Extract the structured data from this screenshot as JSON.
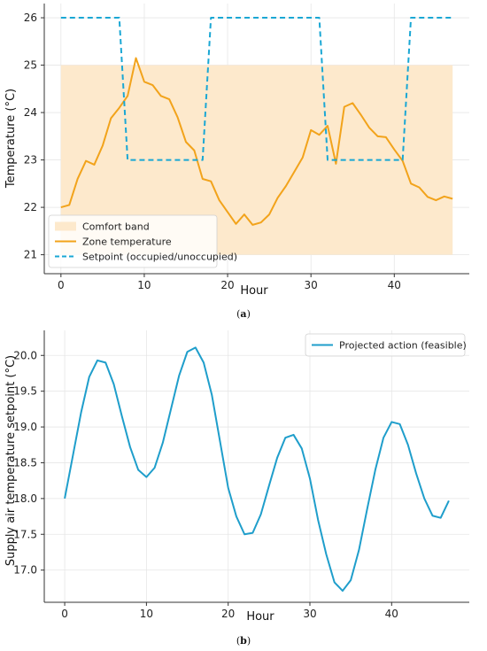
{
  "chart_data": [
    {
      "type": "line",
      "panel_label": "a",
      "xlabel": "Hour",
      "ylabel": "Temperature (°C)",
      "xlim": [
        -2,
        49
      ],
      "ylim": [
        20.6,
        26.3
      ],
      "xticks": [
        0,
        10,
        20,
        30,
        40
      ],
      "yticks": [
        21,
        22,
        23,
        24,
        25,
        26
      ],
      "grid": true,
      "legend_position": "lower-left",
      "band": {
        "name": "Comfort band",
        "y0": 21,
        "y1": 25,
        "x0": 0,
        "x1": 47,
        "color": "#fde9cc"
      },
      "series": [
        {
          "name": "Zone temperature",
          "style": "solid",
          "color": "#f2a31b",
          "x": [
            0,
            1,
            2,
            3,
            4,
            5,
            6,
            7,
            8,
            9,
            10,
            11,
            12,
            13,
            14,
            15,
            16,
            17,
            18,
            19,
            20,
            21,
            22,
            23,
            24,
            25,
            26,
            27,
            28,
            29,
            30,
            31,
            32,
            33,
            34,
            35,
            36,
            37,
            38,
            39,
            40,
            41,
            42,
            43,
            44,
            45,
            46,
            47
          ],
          "y": [
            22.0,
            22.05,
            22.6,
            22.98,
            22.9,
            23.3,
            23.88,
            24.1,
            24.35,
            25.15,
            24.65,
            24.58,
            24.35,
            24.28,
            23.9,
            23.38,
            23.2,
            22.6,
            22.55,
            22.15,
            21.9,
            21.65,
            21.85,
            21.63,
            21.68,
            21.85,
            22.2,
            22.45,
            22.75,
            23.05,
            23.63,
            23.53,
            23.72,
            22.92,
            24.12,
            24.2,
            23.95,
            23.68,
            23.5,
            23.48,
            23.22,
            22.98,
            22.5,
            22.42,
            22.22,
            22.15,
            22.23,
            22.18
          ]
        },
        {
          "name": "Setpoint (occupied/unoccupied)",
          "style": "dashed",
          "color": "#1aa7d4",
          "x": [
            0,
            7,
            8,
            17,
            18,
            31,
            32,
            41,
            42,
            47
          ],
          "y": [
            26,
            26,
            23,
            23,
            26,
            26,
            23,
            23,
            26,
            26
          ]
        }
      ]
    },
    {
      "type": "line",
      "panel_label": "b",
      "xlabel": "Hour",
      "ylabel": "Supply air temperature setpoint (°C)",
      "xlim": [
        -2.5,
        49.5
      ],
      "ylim": [
        16.55,
        20.35
      ],
      "xticks": [
        0,
        10,
        20,
        30,
        40
      ],
      "yticks": [
        17.0,
        17.5,
        18.0,
        18.5,
        19.0,
        19.5,
        20.0
      ],
      "grid": true,
      "legend_position": "top-right",
      "series": [
        {
          "name": "Projected action (feasible)",
          "style": "solid",
          "color": "#1f9ecb",
          "x": [
            0,
            1,
            2,
            3,
            4,
            5,
            6,
            7,
            8,
            9,
            10,
            11,
            12,
            13,
            14,
            15,
            16,
            17,
            18,
            19,
            20,
            21,
            22,
            23,
            24,
            25,
            26,
            27,
            28,
            29,
            30,
            31,
            32,
            33,
            34,
            35,
            36,
            37,
            38,
            39,
            40,
            41,
            42,
            43,
            44,
            45,
            46,
            47
          ],
          "y": [
            18.0,
            18.6,
            19.2,
            19.7,
            19.93,
            19.9,
            19.6,
            19.15,
            18.72,
            18.4,
            18.3,
            18.43,
            18.78,
            19.25,
            19.72,
            20.05,
            20.11,
            19.9,
            19.45,
            18.8,
            18.15,
            17.75,
            17.5,
            17.52,
            17.78,
            18.18,
            18.57,
            18.85,
            18.89,
            18.7,
            18.28,
            17.7,
            17.22,
            16.83,
            16.71,
            16.86,
            17.28,
            17.85,
            18.4,
            18.85,
            19.07,
            19.04,
            18.75,
            18.35,
            18.0,
            17.76,
            17.73,
            17.97
          ]
        }
      ]
    }
  ]
}
